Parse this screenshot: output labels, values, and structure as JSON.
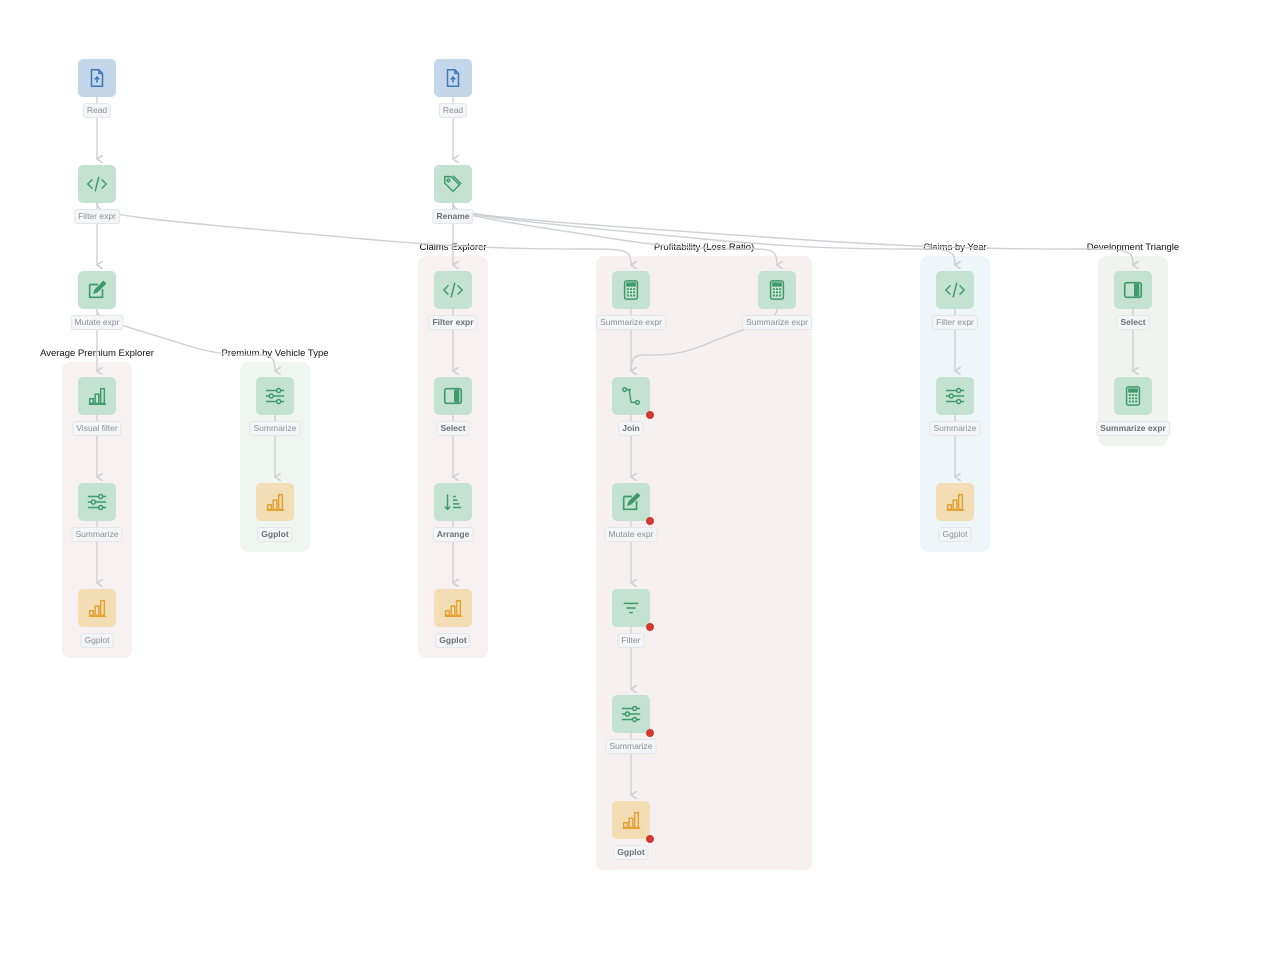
{
  "colors": {
    "read_bg": "#c3d6ea",
    "read_icon": "#3a78b8",
    "transform_bg": "#c4e2d2",
    "transform_icon": "#3f9a6c",
    "plot_bg": "#f2ddb4",
    "plot_icon": "#e3a233",
    "edge": "#cfd0d5",
    "error": "#d13a2f"
  },
  "groups": [
    {
      "id": "g-avg",
      "title": "Average Premium Explorer",
      "color": "#f8f1f1"
    },
    {
      "id": "g-veh",
      "title": "Premium by Vehicle Type",
      "color": "#eff6ef"
    },
    {
      "id": "g-claims",
      "title": "Claims Explorer",
      "color": "#f8f1f2"
    },
    {
      "id": "g-profit",
      "title": "Profitability (Loss Ratio)",
      "color": "#f7f0f0"
    },
    {
      "id": "g-year",
      "title": "Claims by Year",
      "color": "#eef6f9"
    },
    {
      "id": "g-dev",
      "title": "Development Triangle",
      "color": "#f1f4ee"
    }
  ],
  "nodes": [
    {
      "id": "a1",
      "label": "Read",
      "icon": "file-upload",
      "kind": "read",
      "bold": false,
      "error": false
    },
    {
      "id": "a2",
      "label": "Filter expr",
      "icon": "code",
      "kind": "transform",
      "bold": false,
      "error": false
    },
    {
      "id": "a3",
      "label": "Mutate expr",
      "icon": "edit",
      "kind": "transform",
      "bold": false,
      "error": false
    },
    {
      "id": "a4",
      "label": "Visual filter",
      "icon": "bar-chart",
      "kind": "transform",
      "bold": false,
      "error": false
    },
    {
      "id": "a5",
      "label": "Summarize",
      "icon": "sliders",
      "kind": "transform",
      "bold": false,
      "error": false
    },
    {
      "id": "a6",
      "label": "Ggplot",
      "icon": "bar-chart",
      "kind": "plot",
      "bold": false,
      "error": false
    },
    {
      "id": "b1",
      "label": "Summarize",
      "icon": "sliders",
      "kind": "transform",
      "bold": false,
      "error": false
    },
    {
      "id": "b2",
      "label": "Ggplot",
      "icon": "bar-chart",
      "kind": "plot",
      "bold": true,
      "error": false
    },
    {
      "id": "c1",
      "label": "Read",
      "icon": "file-upload",
      "kind": "read",
      "bold": false,
      "error": false
    },
    {
      "id": "c2",
      "label": "Rename",
      "icon": "tag",
      "kind": "transform",
      "bold": true,
      "error": false
    },
    {
      "id": "c3",
      "label": "Filter expr",
      "icon": "code",
      "kind": "transform",
      "bold": true,
      "error": false
    },
    {
      "id": "c4",
      "label": "Select",
      "icon": "select-column",
      "kind": "transform",
      "bold": true,
      "error": false
    },
    {
      "id": "c5",
      "label": "Arrange",
      "icon": "sort",
      "kind": "transform",
      "bold": true,
      "error": false
    },
    {
      "id": "c6",
      "label": "Ggplot",
      "icon": "bar-chart",
      "kind": "plot",
      "bold": true,
      "error": false
    },
    {
      "id": "p1",
      "label": "Summarize expr",
      "icon": "calculator",
      "kind": "transform",
      "bold": false,
      "error": false
    },
    {
      "id": "p2",
      "label": "Summarize expr",
      "icon": "calculator",
      "kind": "transform",
      "bold": false,
      "error": false
    },
    {
      "id": "p3",
      "label": "Join",
      "icon": "join",
      "kind": "transform",
      "bold": true,
      "error": true
    },
    {
      "id": "p4",
      "label": "Mutate expr",
      "icon": "edit",
      "kind": "transform",
      "bold": false,
      "error": true
    },
    {
      "id": "p5",
      "label": "Filter",
      "icon": "filter",
      "kind": "transform",
      "bold": false,
      "error": true
    },
    {
      "id": "p6",
      "label": "Summarize",
      "icon": "sliders",
      "kind": "transform",
      "bold": false,
      "error": true
    },
    {
      "id": "p7",
      "label": "Ggplot",
      "icon": "bar-chart",
      "kind": "plot",
      "bold": true,
      "error": true
    },
    {
      "id": "y1",
      "label": "Filter expr",
      "icon": "code",
      "kind": "transform",
      "bold": false,
      "error": false
    },
    {
      "id": "y2",
      "label": "Summarize",
      "icon": "sliders",
      "kind": "transform",
      "bold": false,
      "error": false
    },
    {
      "id": "y3",
      "label": "Ggplot",
      "icon": "bar-chart",
      "kind": "plot",
      "bold": false,
      "error": false
    },
    {
      "id": "d1",
      "label": "Select",
      "icon": "select-column",
      "kind": "transform",
      "bold": true,
      "error": false
    },
    {
      "id": "d2",
      "label": "Summarize expr",
      "icon": "calculator",
      "kind": "transform",
      "bold": true,
      "error": false
    }
  ],
  "edges": [
    [
      "a1",
      "a2"
    ],
    [
      "a2",
      "a3"
    ],
    [
      "a3",
      "a4"
    ],
    [
      "a4",
      "a5"
    ],
    [
      "a5",
      "a6"
    ],
    [
      "a3",
      "b1"
    ],
    [
      "b1",
      "b2"
    ],
    [
      "a2",
      "p1"
    ],
    [
      "c1",
      "c2"
    ],
    [
      "c2",
      "c3"
    ],
    [
      "c3",
      "c4"
    ],
    [
      "c4",
      "c5"
    ],
    [
      "c5",
      "c6"
    ],
    [
      "c2",
      "p2"
    ],
    [
      "c2",
      "y1"
    ],
    [
      "c2",
      "d1"
    ],
    [
      "p1",
      "p3"
    ],
    [
      "p2",
      "p3"
    ],
    [
      "p3",
      "p4"
    ],
    [
      "p4",
      "p5"
    ],
    [
      "p5",
      "p6"
    ],
    [
      "p6",
      "p7"
    ],
    [
      "y1",
      "y2"
    ],
    [
      "y2",
      "y3"
    ],
    [
      "d1",
      "d2"
    ]
  ]
}
